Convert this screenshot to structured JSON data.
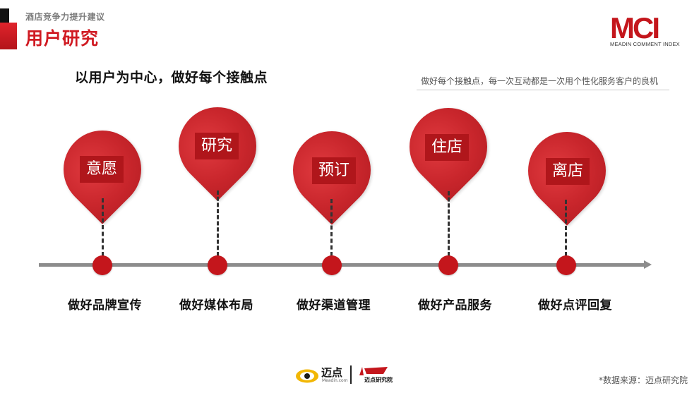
{
  "header": {
    "kicker": "酒店竞争力提升建议",
    "title": "用户研究"
  },
  "logo": {
    "mark": "MCI",
    "subtitle": "MEADIN COMMENT INDEX"
  },
  "headline": "以用户为中心，做好每个接触点",
  "caption": "做好每个接触点，每一次互动都是一次用个性化服务客户的良机",
  "steps": [
    {
      "stage": "意愿",
      "action": "做好品牌宣传"
    },
    {
      "stage": "研究",
      "action": "做好媒体布局"
    },
    {
      "stage": "预订",
      "action": "做好渠道管理"
    },
    {
      "stage": "住店",
      "action": "做好产品服务"
    },
    {
      "stage": "离店",
      "action": "做好点评回复"
    }
  ],
  "footer": {
    "brand1": "迈点",
    "brand1_sub": "Meadin.com",
    "brand2": "迈点研究院",
    "source": "*数据来源：迈点研究院"
  },
  "colors": {
    "accent": "#c4161c",
    "axis": "#8c8c8c"
  }
}
